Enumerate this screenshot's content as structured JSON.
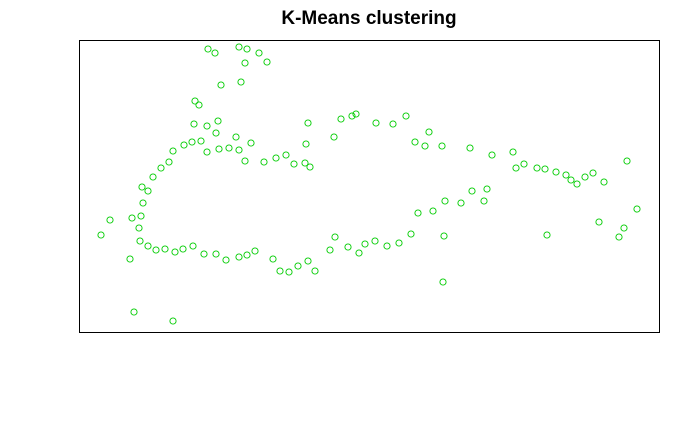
{
  "chart_data": {
    "type": "scatter",
    "title": "K-Means clustering",
    "xlabel": "",
    "ylabel": "",
    "axes_visible": false,
    "grid": false,
    "legend": "none",
    "marker": "open-circle",
    "colors": {
      "points": "#00cc00",
      "frame": "#000000"
    },
    "xlim": [
      0,
      580
    ],
    "ylim": [
      0,
      292
    ],
    "series": [
      {
        "cluster": 1,
        "color": "#00cc00",
        "points": [
          [
            22,
            97
          ],
          [
            31,
            112
          ],
          [
            53,
            114
          ],
          [
            63,
            145
          ],
          [
            51,
            73
          ],
          [
            55,
            20
          ],
          [
            94,
            11
          ],
          [
            129,
            283
          ],
          [
            136,
            279
          ],
          [
            160,
            285
          ],
          [
            168,
            283
          ],
          [
            180,
            279
          ],
          [
            188,
            270
          ],
          [
            166,
            269
          ],
          [
            162,
            250
          ],
          [
            142,
            247
          ],
          [
            120,
            227
          ],
          [
            116,
            231
          ],
          [
            115,
            208
          ],
          [
            139,
            211
          ],
          [
            128,
            206
          ],
          [
            137,
            199
          ],
          [
            157,
            195
          ],
          [
            172,
            189
          ],
          [
            185,
            170
          ],
          [
            197,
            174
          ],
          [
            207,
            177
          ],
          [
            215,
            168
          ],
          [
            226,
            169
          ],
          [
            231,
            165
          ],
          [
            227,
            188
          ],
          [
            229,
            209
          ],
          [
            255,
            195
          ],
          [
            262,
            213
          ],
          [
            277,
            218
          ],
          [
            273,
            216
          ],
          [
            297,
            209
          ],
          [
            314,
            208
          ],
          [
            327,
            216
          ],
          [
            336,
            190
          ],
          [
            346,
            186
          ],
          [
            350,
            200
          ],
          [
            363,
            186
          ],
          [
            365,
            96
          ],
          [
            364,
            50
          ],
          [
            391,
            184
          ],
          [
            413,
            177
          ],
          [
            434,
            180
          ],
          [
            437,
            164
          ],
          [
            445,
            168
          ],
          [
            458,
            164
          ],
          [
            466,
            163
          ],
          [
            468,
            97
          ],
          [
            477,
            160
          ],
          [
            487,
            157
          ],
          [
            492,
            152
          ],
          [
            498,
            148
          ],
          [
            506,
            155
          ],
          [
            514,
            159
          ],
          [
            525,
            150
          ],
          [
            548,
            171
          ],
          [
            558,
            123
          ],
          [
            520,
            110
          ],
          [
            540,
            95
          ],
          [
            545,
            104
          ],
          [
            405,
            131
          ],
          [
            408,
            143
          ],
          [
            393,
            141
          ],
          [
            382,
            129
          ],
          [
            366,
            131
          ],
          [
            354,
            121
          ],
          [
            339,
            119
          ],
          [
            332,
            98
          ],
          [
            320,
            89
          ],
          [
            308,
            86
          ],
          [
            296,
            91
          ],
          [
            286,
            88
          ],
          [
            280,
            79
          ],
          [
            269,
            85
          ],
          [
            256,
            95
          ],
          [
            251,
            82
          ],
          [
            236,
            61
          ],
          [
            229,
            71
          ],
          [
            219,
            66
          ],
          [
            210,
            60
          ],
          [
            201,
            61
          ],
          [
            194,
            73
          ],
          [
            176,
            81
          ],
          [
            168,
            77
          ],
          [
            160,
            75
          ],
          [
            147,
            72
          ],
          [
            137,
            78
          ],
          [
            125,
            78
          ],
          [
            114,
            86
          ],
          [
            104,
            83
          ],
          [
            96,
            80
          ],
          [
            86,
            83
          ],
          [
            77,
            82
          ],
          [
            69,
            86
          ],
          [
            61,
            91
          ],
          [
            60,
            104
          ],
          [
            62,
            116
          ],
          [
            64,
            129
          ],
          [
            69,
            141
          ],
          [
            74,
            155
          ],
          [
            82,
            164
          ],
          [
            90,
            170
          ],
          [
            94,
            181
          ],
          [
            105,
            187
          ],
          [
            113,
            190
          ],
          [
            122,
            191
          ],
          [
            128,
            180
          ],
          [
            140,
            183
          ],
          [
            150,
            184
          ],
          [
            160,
            182
          ],
          [
            166,
            171
          ]
        ]
      }
    ]
  }
}
